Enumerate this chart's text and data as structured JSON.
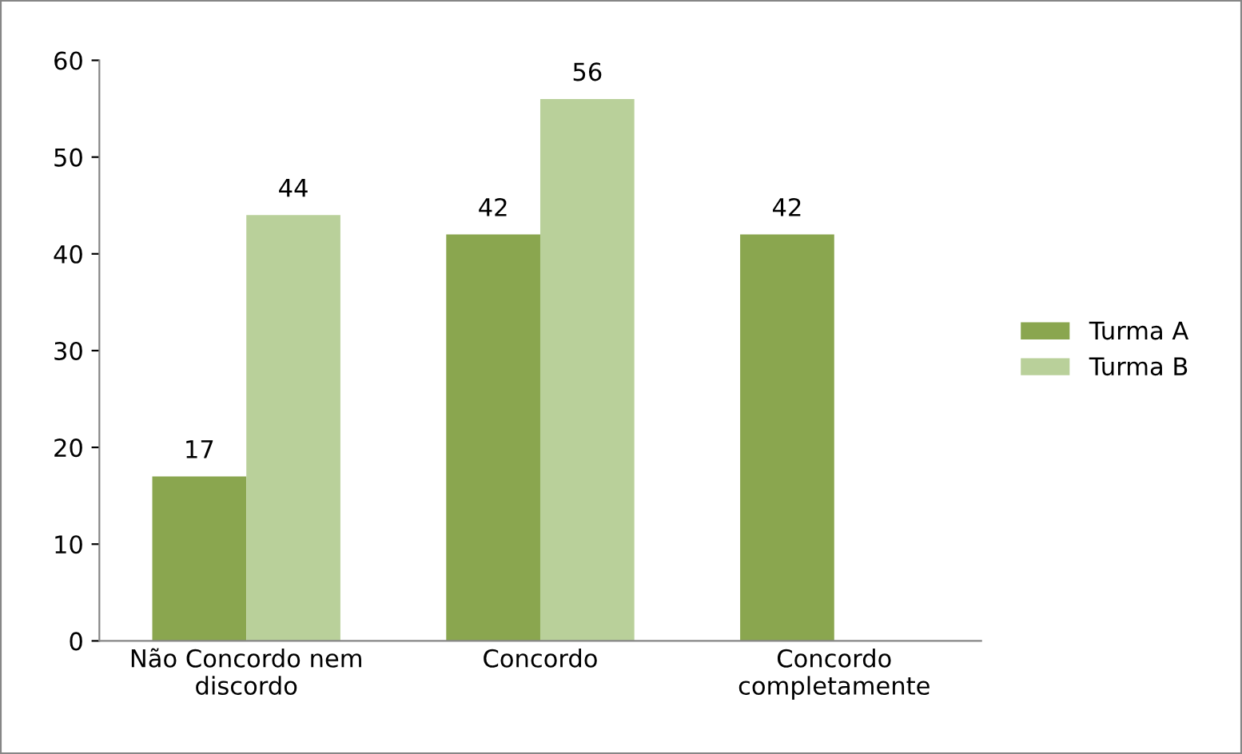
{
  "chart_data": {
    "type": "bar",
    "categories": [
      "Não Concordo nem discordo",
      "Concordo",
      "Concordo completamente"
    ],
    "series": [
      {
        "name": "Turma A",
        "color": "#8aa64f",
        "values": [
          17,
          42,
          42
        ]
      },
      {
        "name": "Turma B",
        "color": "#b9d09a",
        "values": [
          44,
          56,
          null
        ]
      }
    ],
    "ylim": [
      0,
      60
    ],
    "yticks": [
      0,
      10,
      20,
      30,
      40,
      50,
      60
    ],
    "data_labels": true,
    "grid": false,
    "legend": "right"
  }
}
